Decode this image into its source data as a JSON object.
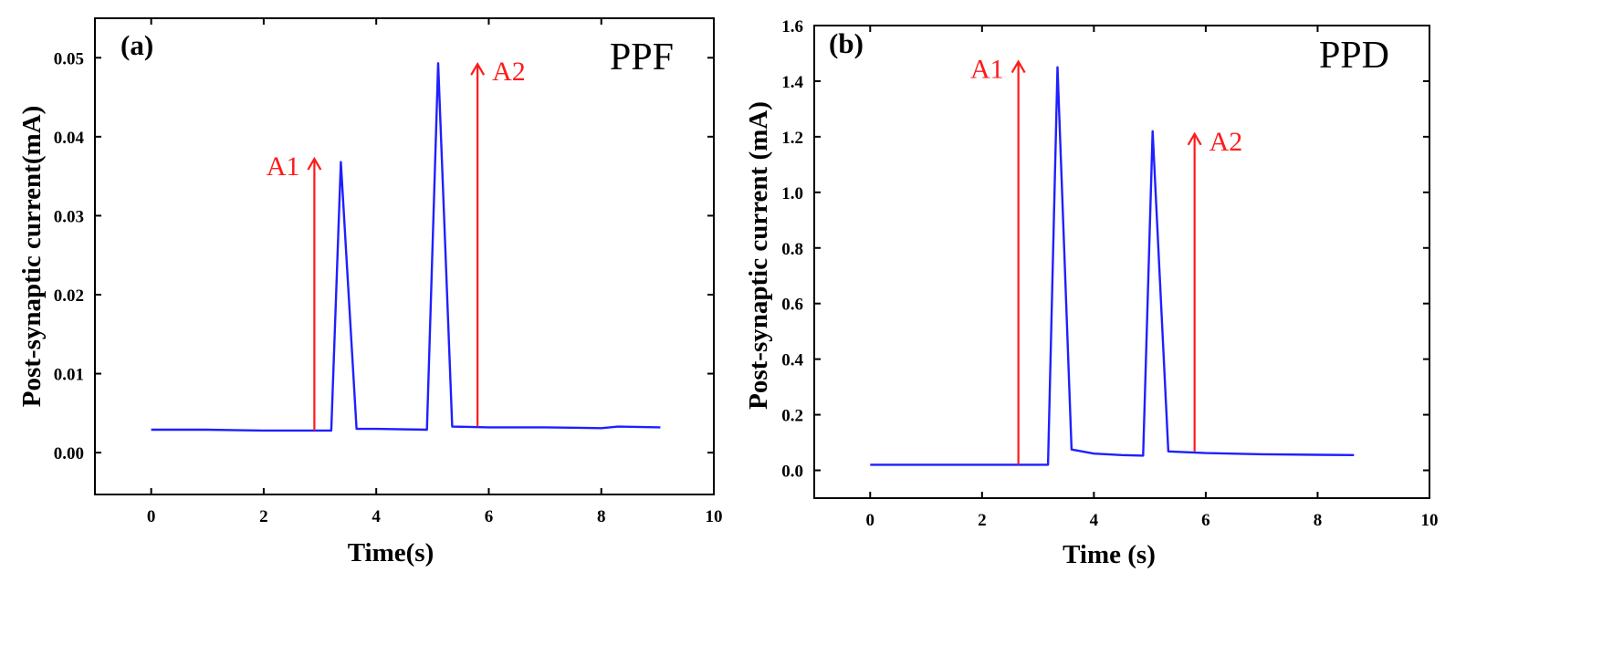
{
  "colors": {
    "series": "#1f1fff",
    "annotation": "#ff1a1a",
    "axes": "#000000"
  },
  "chart_data": [
    {
      "type": "line",
      "panel_label": "(a)",
      "title": "PPF",
      "xlabel": "Time(s)",
      "ylabel": "Post-synaptic current(mA)",
      "xlim": [
        -1,
        10
      ],
      "ylim": [
        -0.0053,
        0.055
      ],
      "xticks": [
        0,
        2,
        4,
        6,
        8,
        10
      ],
      "xtick_labels": [
        "0",
        "2",
        "4",
        "6",
        "8",
        "10"
      ],
      "yticks": [
        0.0,
        0.01,
        0.02,
        0.03,
        0.04,
        0.05
      ],
      "ytick_labels": [
        "0.00",
        "0.01",
        "0.02",
        "0.03",
        "0.04",
        "0.05"
      ],
      "series": [
        {
          "name": "current",
          "x": [
            0,
            1,
            2,
            3,
            3.2,
            3.37,
            3.65,
            4,
            4.9,
            5.1,
            5.35,
            6,
            7,
            8,
            8.3,
            9.05
          ],
          "y": [
            0.0029,
            0.0029,
            0.0028,
            0.0028,
            0.0028,
            0.0368,
            0.003,
            0.003,
            0.0029,
            0.0493,
            0.0033,
            0.0032,
            0.0032,
            0.0031,
            0.0033,
            0.0032
          ]
        }
      ],
      "annotations": [
        {
          "label": "A1",
          "x": 2.9,
          "y_from": 0.0028,
          "y_to": 0.0372,
          "label_side": "left"
        },
        {
          "label": "A2",
          "x": 5.8,
          "y_from": 0.0033,
          "y_to": 0.0492,
          "label_side": "right"
        }
      ]
    },
    {
      "type": "line",
      "panel_label": "(b)",
      "title": "PPD",
      "xlabel": "Time (s)",
      "ylabel": "Post-synaptic current (mA)",
      "xlim": [
        -1,
        10
      ],
      "ylim": [
        -0.1,
        1.6
      ],
      "xticks": [
        0,
        2,
        4,
        6,
        8,
        10
      ],
      "xtick_labels": [
        "0",
        "2",
        "4",
        "6",
        "8",
        "10"
      ],
      "yticks": [
        0.0,
        0.2,
        0.4,
        0.6,
        0.8,
        1.0,
        1.2,
        1.4,
        1.6
      ],
      "ytick_labels": [
        "0.0",
        "0.2",
        "0.4",
        "0.6",
        "0.8",
        "1.0",
        "1.2",
        "1.4",
        "1.6"
      ],
      "series": [
        {
          "name": "current",
          "x": [
            0,
            1,
            2,
            3,
            3.18,
            3.35,
            3.6,
            4,
            4.5,
            4.88,
            5.05,
            5.33,
            6,
            7,
            8,
            8.65
          ],
          "y": [
            0.02,
            0.02,
            0.02,
            0.02,
            0.02,
            1.45,
            0.075,
            0.06,
            0.055,
            0.053,
            1.22,
            0.068,
            0.062,
            0.058,
            0.056,
            0.055
          ]
        }
      ],
      "annotations": [
        {
          "label": "A1",
          "x": 2.65,
          "y_from": 0.02,
          "y_to": 1.47,
          "label_side": "left"
        },
        {
          "label": "A2",
          "x": 5.8,
          "y_from": 0.068,
          "y_to": 1.21,
          "label_side": "right"
        }
      ]
    }
  ]
}
